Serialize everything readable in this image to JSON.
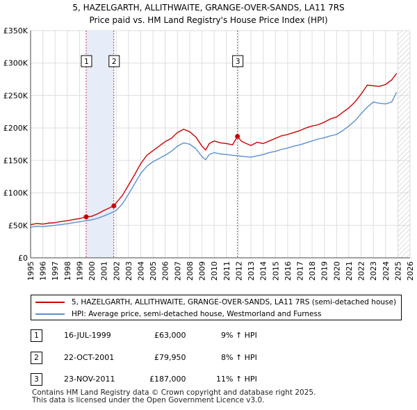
{
  "title_line1": "5, HAZELGARTH, ALLITHWAITE, GRANGE-OVER-SANDS, LA11 7RS",
  "title_line2": "Price paid vs. HM Land Registry's House Price Index (HPI)",
  "colors": {
    "property": "#cc0000",
    "hpi": "#5b8fd0",
    "shade": "#e6ecf8",
    "grid": "#dddddd",
    "vline": "#cc0000"
  },
  "chart_data": {
    "type": "line",
    "title": "Price paid vs. HM Land Registry's House Price Index (HPI)",
    "xlabel": "",
    "ylabel": "",
    "xlim": [
      1995,
      2026
    ],
    "ylim": [
      0,
      350000
    ],
    "y_ticks": [
      {
        "value": 0,
        "label": "£0"
      },
      {
        "value": 50000,
        "label": "£50K"
      },
      {
        "value": 100000,
        "label": "£100K"
      },
      {
        "value": 150000,
        "label": "£150K"
      },
      {
        "value": 200000,
        "label": "£200K"
      },
      {
        "value": 250000,
        "label": "£250K"
      },
      {
        "value": 300000,
        "label": "£300K"
      },
      {
        "value": 350000,
        "label": "£350K"
      }
    ],
    "x_ticks": [
      "1995",
      "1996",
      "1997",
      "1998",
      "1999",
      "2000",
      "2001",
      "2002",
      "2003",
      "2004",
      "2005",
      "2006",
      "2007",
      "2008",
      "2009",
      "2010",
      "2011",
      "2012",
      "2013",
      "2014",
      "2015",
      "2016",
      "2017",
      "2018",
      "2019",
      "2020",
      "2021",
      "2022",
      "2023",
      "2024",
      "2025",
      "2026"
    ],
    "shaded_periods": [
      [
        1999.54,
        2001.8
      ]
    ],
    "future_hatch_from": 2025.0,
    "series": [
      {
        "name": "5, HAZELGARTH, ALLITHWAITE, GRANGE-OVER-SANDS, LA11 7RS (semi-detached house)",
        "x": [
          1995,
          1995.5,
          1996,
          1996.5,
          1997,
          1997.5,
          1998,
          1998.5,
          1999,
          1999.54,
          2000,
          2000.5,
          2001,
          2001.8,
          2002,
          2002.5,
          2003,
          2003.5,
          2004,
          2004.5,
          2005,
          2005.5,
          2006,
          2006.5,
          2007,
          2007.5,
          2008,
          2008.5,
          2009,
          2009.3,
          2009.6,
          2010,
          2010.5,
          2011,
          2011.5,
          2011.9,
          2012.2,
          2012.5,
          2013,
          2013.5,
          2014,
          2014.5,
          2015,
          2015.5,
          2016,
          2016.5,
          2017,
          2017.5,
          2018,
          2018.5,
          2019,
          2019.5,
          2020,
          2020.5,
          2021,
          2021.5,
          2022,
          2022.5,
          2023,
          2023.5,
          2024,
          2024.5,
          2024.9
        ],
        "values": [
          51000,
          53000,
          52000,
          53500,
          54000,
          56000,
          57000,
          59000,
          60500,
          63000,
          64000,
          68000,
          73000,
          79950,
          85000,
          96000,
          112000,
          128000,
          145000,
          158000,
          165000,
          172000,
          179000,
          184000,
          193000,
          198000,
          194000,
          186000,
          172000,
          166000,
          176000,
          180000,
          177000,
          176000,
          174000,
          187000,
          180000,
          177000,
          173000,
          178000,
          176000,
          180000,
          184000,
          188000,
          190000,
          193000,
          196000,
          200000,
          203000,
          205000,
          209000,
          214000,
          217000,
          224000,
          231000,
          240000,
          252000,
          266000,
          265000,
          264000,
          267000,
          274000,
          284000
        ]
      },
      {
        "name": "HPI: Average price, semi-detached house, Westmorland and Furness",
        "x": [
          1995,
          1995.5,
          1996,
          1996.5,
          1997,
          1997.5,
          1998,
          1998.5,
          1999,
          1999.5,
          2000,
          2000.5,
          2001,
          2001.5,
          2002,
          2002.5,
          2003,
          2003.5,
          2004,
          2004.5,
          2005,
          2005.5,
          2006,
          2006.5,
          2007,
          2007.5,
          2008,
          2008.5,
          2009,
          2009.3,
          2009.6,
          2010,
          2010.5,
          2011,
          2011.5,
          2012,
          2012.5,
          2013,
          2013.5,
          2014,
          2014.5,
          2015,
          2015.5,
          2016,
          2016.5,
          2017,
          2017.5,
          2018,
          2018.5,
          2019,
          2019.5,
          2020,
          2020.5,
          2021,
          2021.5,
          2022,
          2022.5,
          2023,
          2023.5,
          2024,
          2024.5,
          2024.9
        ],
        "values": [
          47000,
          48500,
          48000,
          49000,
          50000,
          51500,
          52500,
          54000,
          55500,
          57000,
          58500,
          61000,
          64500,
          68500,
          73000,
          83000,
          98000,
          114000,
          130000,
          141000,
          148000,
          153000,
          158000,
          164000,
          172000,
          177000,
          175000,
          168000,
          156000,
          151000,
          159000,
          162000,
          160000,
          159000,
          158000,
          157000,
          156000,
          155000,
          157000,
          159000,
          162000,
          164000,
          167000,
          169000,
          172000,
          174000,
          177000,
          180000,
          183000,
          185000,
          188000,
          190000,
          196000,
          203000,
          211000,
          222000,
          232000,
          240000,
          238000,
          237000,
          240000,
          255000
        ]
      }
    ],
    "sale_markers": [
      {
        "num": "1",
        "x": 1999.54,
        "value": 63000
      },
      {
        "num": "2",
        "x": 2001.8,
        "value": 79950
      },
      {
        "num": "3",
        "x": 2011.9,
        "value": 187000
      }
    ]
  },
  "legend": {
    "property_label": "5, HAZELGARTH, ALLITHWAITE, GRANGE-OVER-SANDS, LA11 7RS (semi-detached house)",
    "hpi_label": "HPI: Average price, semi-detached house, Westmorland and Furness"
  },
  "sales": [
    {
      "num": "1",
      "date": "16-JUL-1999",
      "price": "£63,000",
      "hpi": "9% ↑ HPI"
    },
    {
      "num": "2",
      "date": "22-OCT-2001",
      "price": "£79,950",
      "hpi": "8% ↑ HPI"
    },
    {
      "num": "3",
      "date": "23-NOV-2011",
      "price": "£187,000",
      "hpi": "11% ↑ HPI"
    }
  ],
  "footer": {
    "line1": "Contains HM Land Registry data © Crown copyright and database right 2025.",
    "line2": "This data is licensed under the Open Government Licence v3.0."
  }
}
